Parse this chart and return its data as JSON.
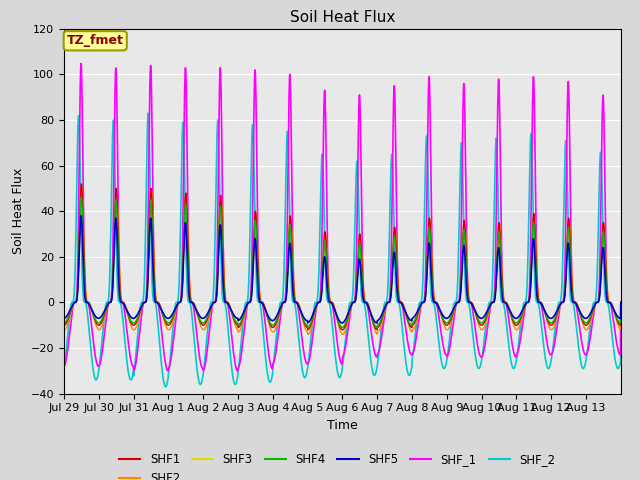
{
  "title": "Soil Heat Flux",
  "xlabel": "Time",
  "ylabel": "Soil Heat Flux",
  "ylim": [
    -40,
    120
  ],
  "n_days": 16,
  "background_color": "#d8d8d8",
  "plot_bg_color": "#e8e8e8",
  "series": {
    "SHF1": {
      "color": "#cc0000",
      "lw": 1.0
    },
    "SHF2": {
      "color": "#ff8800",
      "lw": 1.0
    },
    "SHF3": {
      "color": "#dddd00",
      "lw": 1.0
    },
    "SHF4": {
      "color": "#00bb00",
      "lw": 1.0
    },
    "SHF5": {
      "color": "#0000cc",
      "lw": 1.2
    },
    "SHF_1": {
      "color": "#ff00ff",
      "lw": 1.2
    },
    "SHF_2": {
      "color": "#00cccc",
      "lw": 1.2
    }
  },
  "x_tick_labels": [
    "Jul 29",
    "Jul 30",
    "Jul 31",
    "Aug 1",
    "Aug 2",
    "Aug 3",
    "Aug 4",
    "Aug 5",
    "Aug 6",
    "Aug 7",
    "Aug 8",
    "Aug 9",
    "Aug 10",
    "Aug 11",
    "Aug 12",
    "Aug 13"
  ],
  "annotation_text": "TZ_fmet",
  "annotation_bg": "#ffff99",
  "annotation_border": "#999900",
  "annotation_text_color": "#8b0000",
  "annotation_fontsize": 9,
  "shf1_peaks": [
    52,
    50,
    50,
    48,
    47,
    40,
    38,
    31,
    30,
    33,
    37,
    36,
    35,
    39,
    37,
    35
  ],
  "shf2_peaks": [
    50,
    49,
    49,
    47,
    46,
    39,
    37,
    30,
    29,
    32,
    36,
    35,
    34,
    38,
    36,
    34
  ],
  "shf3_peaks": [
    50,
    49,
    49,
    47,
    46,
    39,
    37,
    30,
    29,
    32,
    36,
    35,
    34,
    38,
    36,
    34
  ],
  "shf4_peaks": [
    46,
    45,
    45,
    43,
    42,
    36,
    34,
    27,
    26,
    29,
    33,
    32,
    31,
    35,
    33,
    31
  ],
  "shf5_peaks": [
    38,
    37,
    37,
    35,
    34,
    28,
    26,
    20,
    19,
    22,
    26,
    25,
    24,
    28,
    26,
    24
  ],
  "shf1_neg": 10,
  "shf2_neg": 12,
  "shf3_neg": 9,
  "shf4_neg": 9,
  "shf5_neg": 7,
  "shf1_neg_list": [
    10,
    10,
    10,
    10,
    10,
    11,
    11,
    12,
    12,
    11,
    10,
    10,
    10,
    10,
    10,
    10
  ],
  "shf2_neg_list": [
    12,
    12,
    12,
    12,
    12,
    13,
    13,
    14,
    14,
    13,
    12,
    12,
    12,
    12,
    12,
    12
  ],
  "shf3_neg_list": [
    9,
    9,
    9,
    9,
    9,
    10,
    10,
    11,
    11,
    10,
    9,
    9,
    9,
    9,
    9,
    9
  ],
  "shf4_neg_list": [
    9,
    9,
    9,
    9,
    9,
    10,
    10,
    11,
    11,
    10,
    9,
    9,
    9,
    9,
    9,
    9
  ],
  "shf5_neg_list": [
    7,
    7,
    7,
    7,
    7,
    8,
    8,
    9,
    9,
    8,
    7,
    7,
    7,
    7,
    7,
    7
  ],
  "shf_1_peaks": [
    105,
    103,
    104,
    103,
    103,
    102,
    100,
    93,
    91,
    95,
    99,
    96,
    98,
    99,
    97,
    91
  ],
  "shf_1_neg": [
    28,
    28,
    30,
    29,
    30,
    29,
    27,
    27,
    24,
    23,
    23,
    24,
    24,
    23,
    23,
    23
  ],
  "shf_2_peaks": [
    82,
    80,
    83,
    79,
    80,
    78,
    75,
    65,
    62,
    65,
    73,
    70,
    72,
    74,
    71,
    66
  ],
  "shf_2_neg": [
    34,
    34,
    37,
    36,
    36,
    35,
    33,
    33,
    32,
    32,
    29,
    29,
    29,
    29,
    29,
    29
  ]
}
